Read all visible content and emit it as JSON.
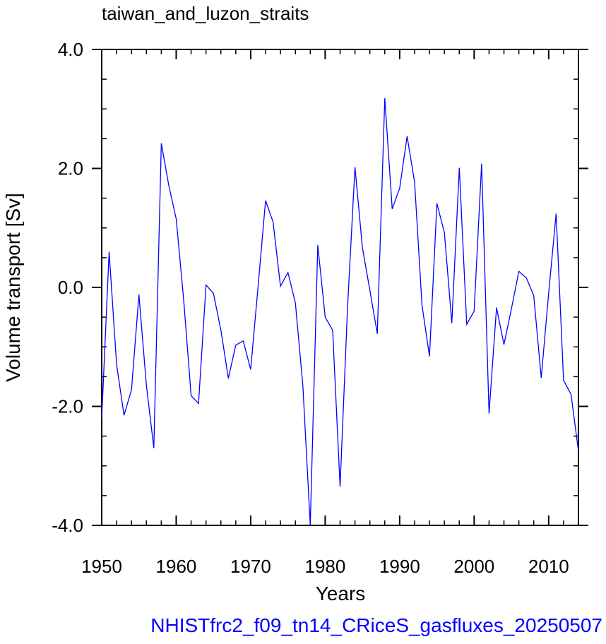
{
  "chart_data": {
    "type": "line",
    "title": "taiwan_and_luzon_straits",
    "subtitle": "NHISTfrc2_f09_tn14_CRiceS_gasfluxes_20250507",
    "xlabel": "Years",
    "ylabel": "Volume transport [Sv]",
    "xlim": [
      1950,
      2014
    ],
    "ylim": [
      -4.0,
      4.0
    ],
    "x_ticks": [
      1950,
      1960,
      1970,
      1980,
      1990,
      2000,
      2010
    ],
    "x_tick_labels": [
      "1950",
      "1960",
      "1970",
      "1980",
      "1990",
      "2000",
      "2010"
    ],
    "y_ticks": [
      -4.0,
      -2.0,
      0.0,
      2.0,
      4.0
    ],
    "y_tick_labels": [
      "-4.0",
      "-2.0",
      "0.0",
      "2.0",
      "4.0"
    ],
    "grid": false,
    "series": [
      {
        "color": "#0000ff",
        "x": [
          1950,
          1951,
          1952,
          1953,
          1954,
          1955,
          1956,
          1957,
          1958,
          1959,
          1960,
          1961,
          1962,
          1963,
          1964,
          1965,
          1966,
          1967,
          1968,
          1969,
          1970,
          1971,
          1972,
          1973,
          1974,
          1975,
          1976,
          1977,
          1978,
          1979,
          1980,
          1981,
          1982,
          1983,
          1984,
          1985,
          1986,
          1987,
          1988,
          1989,
          1990,
          1991,
          1992,
          1993,
          1994,
          1995,
          1996,
          1997,
          1998,
          1999,
          2000,
          2001,
          2002,
          2003,
          2004,
          2005,
          2006,
          2007,
          2008,
          2009,
          2010,
          2011,
          2012,
          2013,
          2014
        ],
        "values": [
          -2.2,
          0.6,
          -1.3,
          -2.15,
          -1.72,
          -0.12,
          -1.65,
          -2.7,
          2.42,
          1.72,
          1.15,
          -0.2,
          -1.82,
          -1.95,
          0.04,
          -0.1,
          -0.72,
          -1.53,
          -0.97,
          -0.9,
          -1.38,
          0.03,
          1.46,
          1.1,
          0.02,
          0.25,
          -0.26,
          -1.65,
          -4.0,
          0.71,
          -0.5,
          -0.72,
          -3.35,
          -0.35,
          2.02,
          0.67,
          -0.05,
          -0.78,
          3.18,
          1.32,
          1.67,
          2.54,
          1.77,
          -0.3,
          -1.16,
          1.41,
          0.92,
          -0.6,
          2.01,
          -0.62,
          -0.4,
          2.08,
          -2.12,
          -0.34,
          -0.96,
          -0.36,
          0.27,
          0.16,
          -0.14,
          -1.52,
          -0.1,
          1.24,
          -1.56,
          -1.8,
          -2.75
        ]
      }
    ]
  }
}
